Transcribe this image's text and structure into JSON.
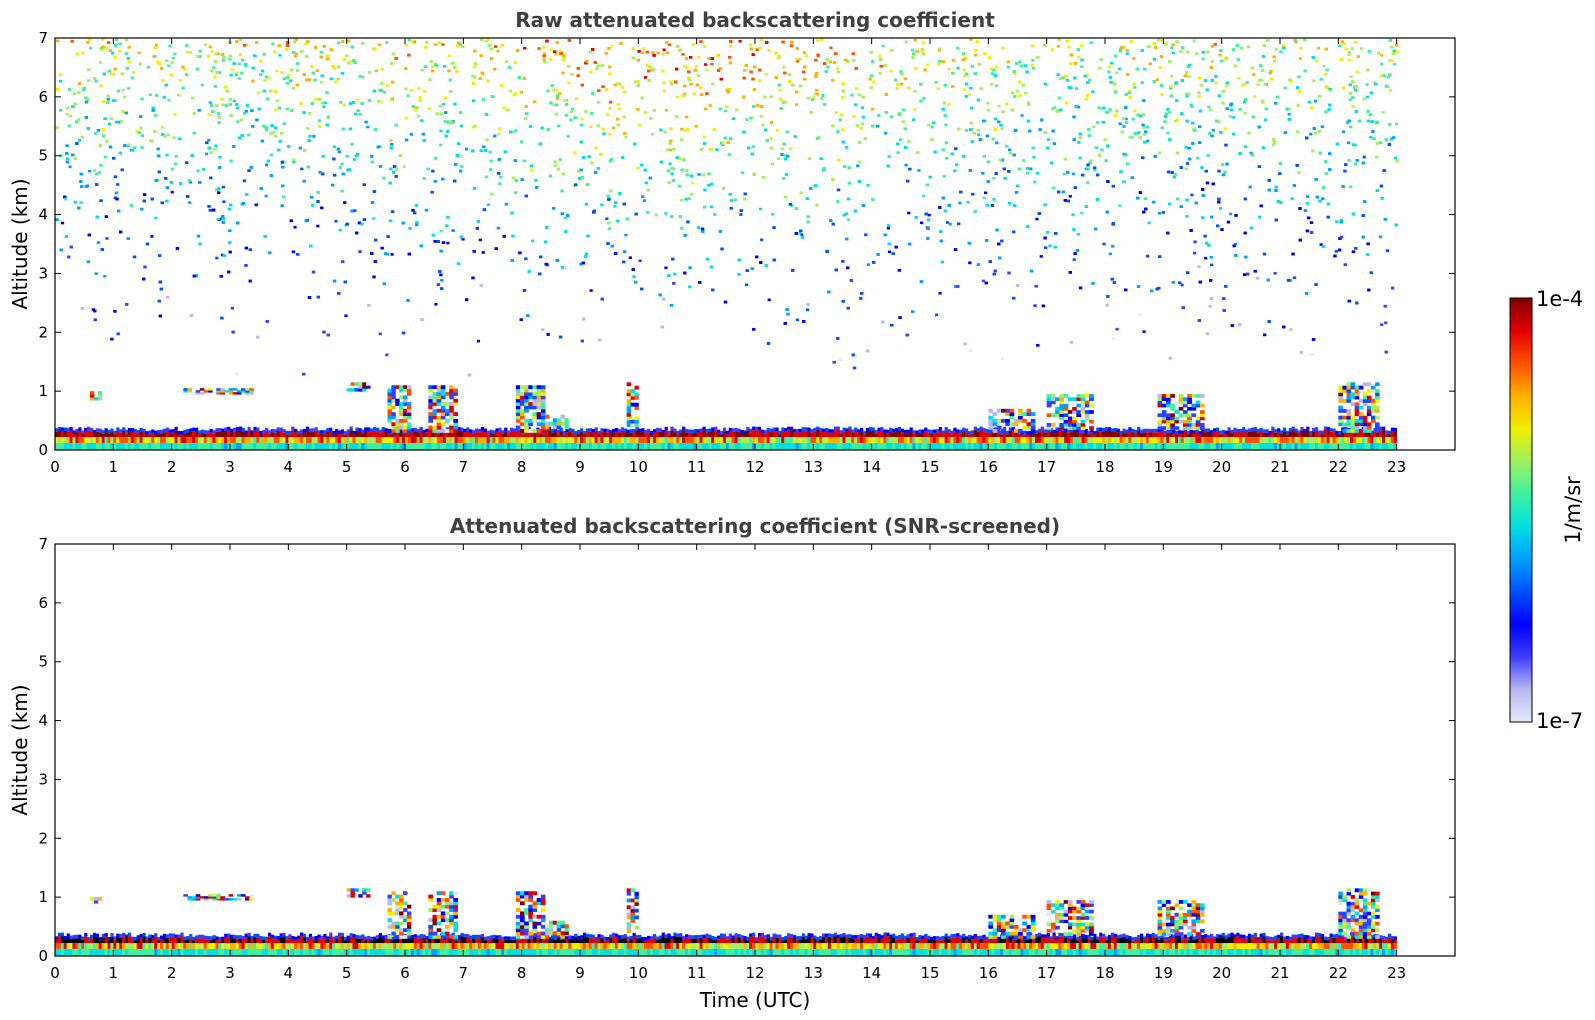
{
  "chart_data": [
    {
      "type": "heatmap",
      "title": "Raw attenuated backscattering coefficient",
      "xlabel": "",
      "ylabel": "Altitude (km)",
      "xlim": [
        0,
        24
      ],
      "ylim": [
        0,
        7
      ],
      "xticks": [
        "0",
        "1",
        "2",
        "3",
        "4",
        "5",
        "6",
        "7",
        "8",
        "9",
        "10",
        "11",
        "12",
        "13",
        "14",
        "15",
        "16",
        "17",
        "18",
        "19",
        "20",
        "21",
        "22",
        "23"
      ],
      "yticks": [
        "0",
        "1",
        "2",
        "3",
        "4",
        "5",
        "6",
        "7"
      ],
      "data_end_time": 23,
      "boundary_layer_top_km": 0.35,
      "cloud_layers": [
        {
          "t0": 0.6,
          "t1": 0.8,
          "bottom": 0.85,
          "top": 1.0
        },
        {
          "t0": 2.2,
          "t1": 3.4,
          "bottom": 0.95,
          "top": 1.05
        },
        {
          "t0": 5.0,
          "t1": 5.4,
          "bottom": 1.0,
          "top": 1.15
        },
        {
          "t0": 5.7,
          "t1": 6.1,
          "bottom": 0.3,
          "top": 1.1
        },
        {
          "t0": 6.4,
          "t1": 6.9,
          "bottom": 0.3,
          "top": 1.1
        },
        {
          "t0": 7.9,
          "t1": 8.4,
          "bottom": 0.3,
          "top": 1.1
        },
        {
          "t0": 8.4,
          "t1": 8.8,
          "bottom": 0.3,
          "top": 0.6
        },
        {
          "t0": 9.8,
          "t1": 10.0,
          "bottom": 0.4,
          "top": 1.15
        },
        {
          "t0": 16.0,
          "t1": 16.8,
          "bottom": 0.3,
          "top": 0.7
        },
        {
          "t0": 17.0,
          "t1": 17.8,
          "bottom": 0.35,
          "top": 0.95
        },
        {
          "t0": 18.9,
          "t1": 19.7,
          "bottom": 0.35,
          "top": 0.95
        },
        {
          "t0": 22.0,
          "t1": 22.7,
          "bottom": 0.3,
          "top": 1.15
        }
      ]
    },
    {
      "type": "heatmap",
      "title": "Attenuated backscattering coefficient (SNR-screened)",
      "xlabel": "Time (UTC)",
      "ylabel": "Altitude (km)",
      "xlim": [
        0,
        24
      ],
      "ylim": [
        0,
        7
      ],
      "xticks": [
        "0",
        "1",
        "2",
        "3",
        "4",
        "5",
        "6",
        "7",
        "8",
        "9",
        "10",
        "11",
        "12",
        "13",
        "14",
        "15",
        "16",
        "17",
        "18",
        "19",
        "20",
        "21",
        "22",
        "23"
      ],
      "yticks": [
        "0",
        "1",
        "2",
        "3",
        "4",
        "5",
        "6",
        "7"
      ],
      "data_end_time": 23
    }
  ],
  "colorbar": {
    "label": "1/m/sr",
    "max_label": "1e-4",
    "min_label": "1e-7",
    "colors": [
      "#e6e8f8",
      "#b8b8f0",
      "#3c3cff",
      "#0000ff",
      "#0050ff",
      "#00a0ff",
      "#00e0e0",
      "#40f0a0",
      "#a0f060",
      "#f0f000",
      "#ffb000",
      "#ff5000",
      "#e00000",
      "#800000"
    ]
  }
}
